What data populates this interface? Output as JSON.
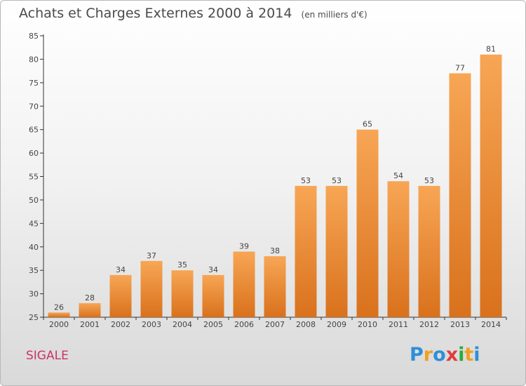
{
  "title": "Achats et Charges Externes 2000 à 2014",
  "unit_note": "(en milliers d'€)",
  "commune": "SIGALE",
  "logo_text": "Proxiti",
  "colors": {
    "bar_light": "#f7a655",
    "bar_dark": "#d9711c",
    "commune": "#cc3366",
    "axis": "#333333"
  },
  "chart_data": {
    "type": "bar",
    "categories": [
      "2000",
      "2001",
      "2002",
      "2003",
      "2004",
      "2005",
      "2006",
      "2007",
      "2008",
      "2009",
      "2010",
      "2011",
      "2012",
      "2013",
      "2014"
    ],
    "values": [
      26,
      28,
      34,
      37,
      35,
      34,
      39,
      38,
      53,
      53,
      65,
      54,
      53,
      77,
      81
    ],
    "ylim": [
      25,
      85
    ],
    "yticks": [
      25,
      30,
      35,
      40,
      45,
      50,
      55,
      60,
      65,
      70,
      75,
      80,
      85
    ],
    "xlabel": "",
    "ylabel": "",
    "grid": false
  }
}
